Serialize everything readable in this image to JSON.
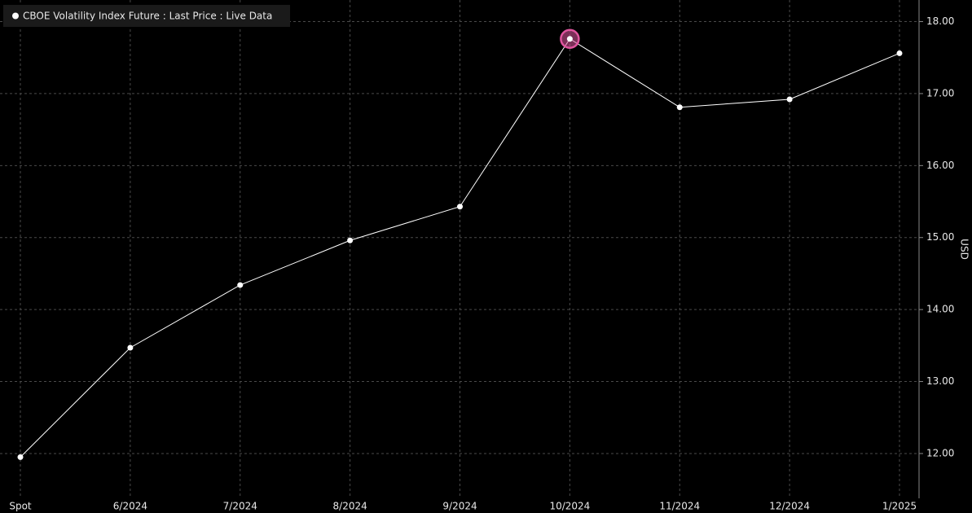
{
  "chart_data": {
    "type": "line",
    "legend": "CBOE Volatility Index Future : Last Price : Live Data",
    "y_axis_label": "USD",
    "categories": [
      "Spot",
      "6/2024",
      "7/2024",
      "8/2024",
      "9/2024",
      "10/2024",
      "11/2024",
      "12/2024",
      "1/2025"
    ],
    "series": [
      {
        "name": "CBOE Volatility Index Future : Last Price : Live Data",
        "color": "#ffffff",
        "values": [
          11.95,
          13.47,
          14.34,
          14.96,
          15.43,
          17.76,
          16.81,
          16.92,
          17.56
        ]
      }
    ],
    "highlight": 5,
    "highlight_color": "#e0559f",
    "ylim": [
      11.4,
      18.3
    ],
    "yticks": [
      {
        "value": 12,
        "label": "12.00"
      },
      {
        "value": 13,
        "label": "13.00"
      },
      {
        "value": 14,
        "label": "14.00"
      },
      {
        "value": 15,
        "label": "15.00"
      },
      {
        "value": 16,
        "label": "16.00"
      },
      {
        "value": 17,
        "label": "17.00"
      },
      {
        "value": 18,
        "label": "18.00"
      }
    ],
    "grid": true
  }
}
